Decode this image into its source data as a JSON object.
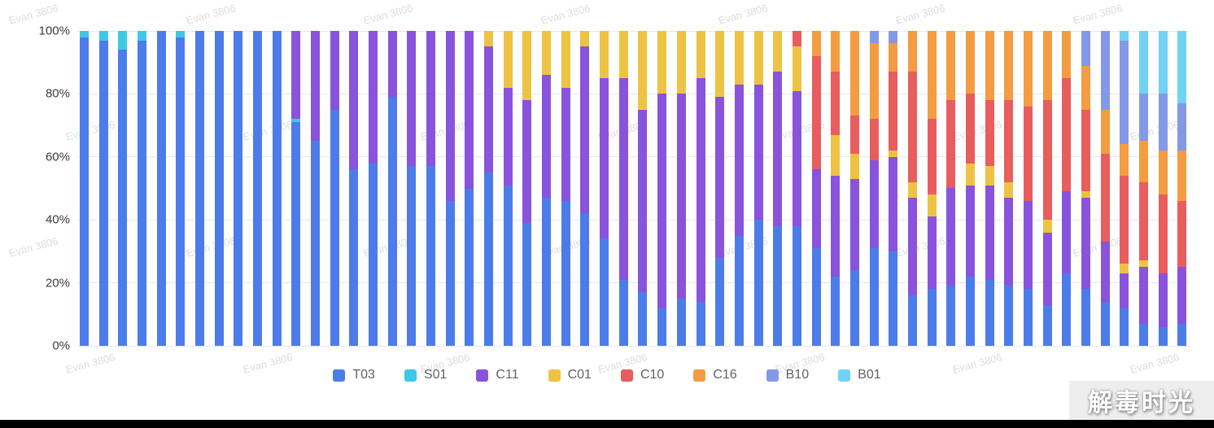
{
  "watermark": {
    "text": "Evan 3806"
  },
  "brand": {
    "text": "解毒时光"
  },
  "chart_data": {
    "type": "bar",
    "variant": "stacked-percent-column",
    "title": "",
    "xlabel": "",
    "ylabel": "",
    "ylim": [
      0,
      100
    ],
    "y_ticks": [
      "0%",
      "20%",
      "40%",
      "60%",
      "80%",
      "100%"
    ],
    "grid": true,
    "legend_position": "bottom",
    "bar_count": 58,
    "series": [
      {
        "name": "T03",
        "color": "#4c7cea",
        "values": [
          98,
          97,
          94,
          97,
          100,
          98,
          100,
          100,
          100,
          100,
          100,
          71,
          65,
          75,
          56,
          58,
          79,
          57,
          57,
          46,
          50,
          55,
          51,
          39,
          47,
          46,
          42,
          34,
          21,
          17,
          12,
          15,
          14,
          28,
          35,
          40,
          38,
          38,
          31,
          22,
          24,
          31,
          30,
          16,
          18,
          19,
          22,
          21,
          19,
          18,
          13,
          23,
          18,
          14,
          12,
          7,
          6,
          7
        ]
      },
      {
        "name": "S01",
        "color": "#3fc8e4",
        "values": [
          2,
          3,
          6,
          3,
          0,
          2,
          0,
          0,
          0,
          0,
          0,
          1,
          0,
          0,
          0,
          0,
          0,
          0,
          0,
          0,
          0,
          0,
          0,
          0,
          0,
          0,
          0,
          0,
          0,
          0,
          0,
          0,
          0,
          0,
          0,
          0,
          0,
          0,
          0,
          0,
          0,
          0,
          0,
          0,
          0,
          0,
          0,
          0,
          0,
          0,
          0,
          0,
          0,
          0,
          0,
          0,
          0,
          0
        ]
      },
      {
        "name": "C11",
        "color": "#8a53db",
        "values": [
          0,
          0,
          0,
          0,
          0,
          0,
          0,
          0,
          0,
          0,
          0,
          28,
          35,
          25,
          44,
          42,
          21,
          43,
          43,
          54,
          50,
          40,
          31,
          39,
          39,
          36,
          53,
          51,
          64,
          58,
          68,
          65,
          71,
          51,
          48,
          43,
          49,
          43,
          25,
          32,
          29,
          28,
          30,
          31,
          23,
          31,
          29,
          30,
          28,
          28,
          23,
          26,
          29,
          19,
          11,
          18,
          17,
          18
        ]
      },
      {
        "name": "C01",
        "color": "#eec343",
        "values": [
          0,
          0,
          0,
          0,
          0,
          0,
          0,
          0,
          0,
          0,
          0,
          0,
          0,
          0,
          0,
          0,
          0,
          0,
          0,
          0,
          0,
          5,
          18,
          22,
          14,
          18,
          5,
          15,
          15,
          25,
          20,
          20,
          15,
          21,
          17,
          17,
          13,
          14,
          0,
          13,
          8,
          0,
          2,
          5,
          7,
          0,
          7,
          6,
          5,
          0,
          4,
          0,
          2,
          0,
          3,
          2,
          0,
          0
        ]
      },
      {
        "name": "C10",
        "color": "#e85d5d",
        "values": [
          0,
          0,
          0,
          0,
          0,
          0,
          0,
          0,
          0,
          0,
          0,
          0,
          0,
          0,
          0,
          0,
          0,
          0,
          0,
          0,
          0,
          0,
          0,
          0,
          0,
          0,
          0,
          0,
          0,
          0,
          0,
          0,
          0,
          0,
          0,
          0,
          0,
          5,
          36,
          20,
          12,
          13,
          25,
          35,
          24,
          28,
          22,
          21,
          26,
          30,
          38,
          36,
          26,
          28,
          28,
          25,
          25,
          21
        ]
      },
      {
        "name": "C16",
        "color": "#f39c42",
        "values": [
          0,
          0,
          0,
          0,
          0,
          0,
          0,
          0,
          0,
          0,
          0,
          0,
          0,
          0,
          0,
          0,
          0,
          0,
          0,
          0,
          0,
          0,
          0,
          0,
          0,
          0,
          0,
          0,
          0,
          0,
          0,
          0,
          0,
          0,
          0,
          0,
          0,
          0,
          8,
          13,
          27,
          24,
          9,
          13,
          28,
          22,
          20,
          22,
          22,
          24,
          22,
          15,
          14,
          14,
          10,
          13,
          14,
          16
        ]
      },
      {
        "name": "B10",
        "color": "#8399e8",
        "values": [
          0,
          0,
          0,
          0,
          0,
          0,
          0,
          0,
          0,
          0,
          0,
          0,
          0,
          0,
          0,
          0,
          0,
          0,
          0,
          0,
          0,
          0,
          0,
          0,
          0,
          0,
          0,
          0,
          0,
          0,
          0,
          0,
          0,
          0,
          0,
          0,
          0,
          0,
          0,
          0,
          0,
          4,
          4,
          0,
          0,
          0,
          0,
          0,
          0,
          0,
          0,
          0,
          11,
          25,
          33,
          15,
          18,
          15
        ]
      },
      {
        "name": "B01",
        "color": "#72d2f4",
        "values": [
          0,
          0,
          0,
          0,
          0,
          0,
          0,
          0,
          0,
          0,
          0,
          0,
          0,
          0,
          0,
          0,
          0,
          0,
          0,
          0,
          0,
          0,
          0,
          0,
          0,
          0,
          0,
          0,
          0,
          0,
          0,
          0,
          0,
          0,
          0,
          0,
          0,
          0,
          0,
          0,
          0,
          0,
          0,
          0,
          0,
          0,
          0,
          0,
          0,
          0,
          0,
          0,
          0,
          0,
          3,
          20,
          20,
          23
        ]
      }
    ]
  }
}
